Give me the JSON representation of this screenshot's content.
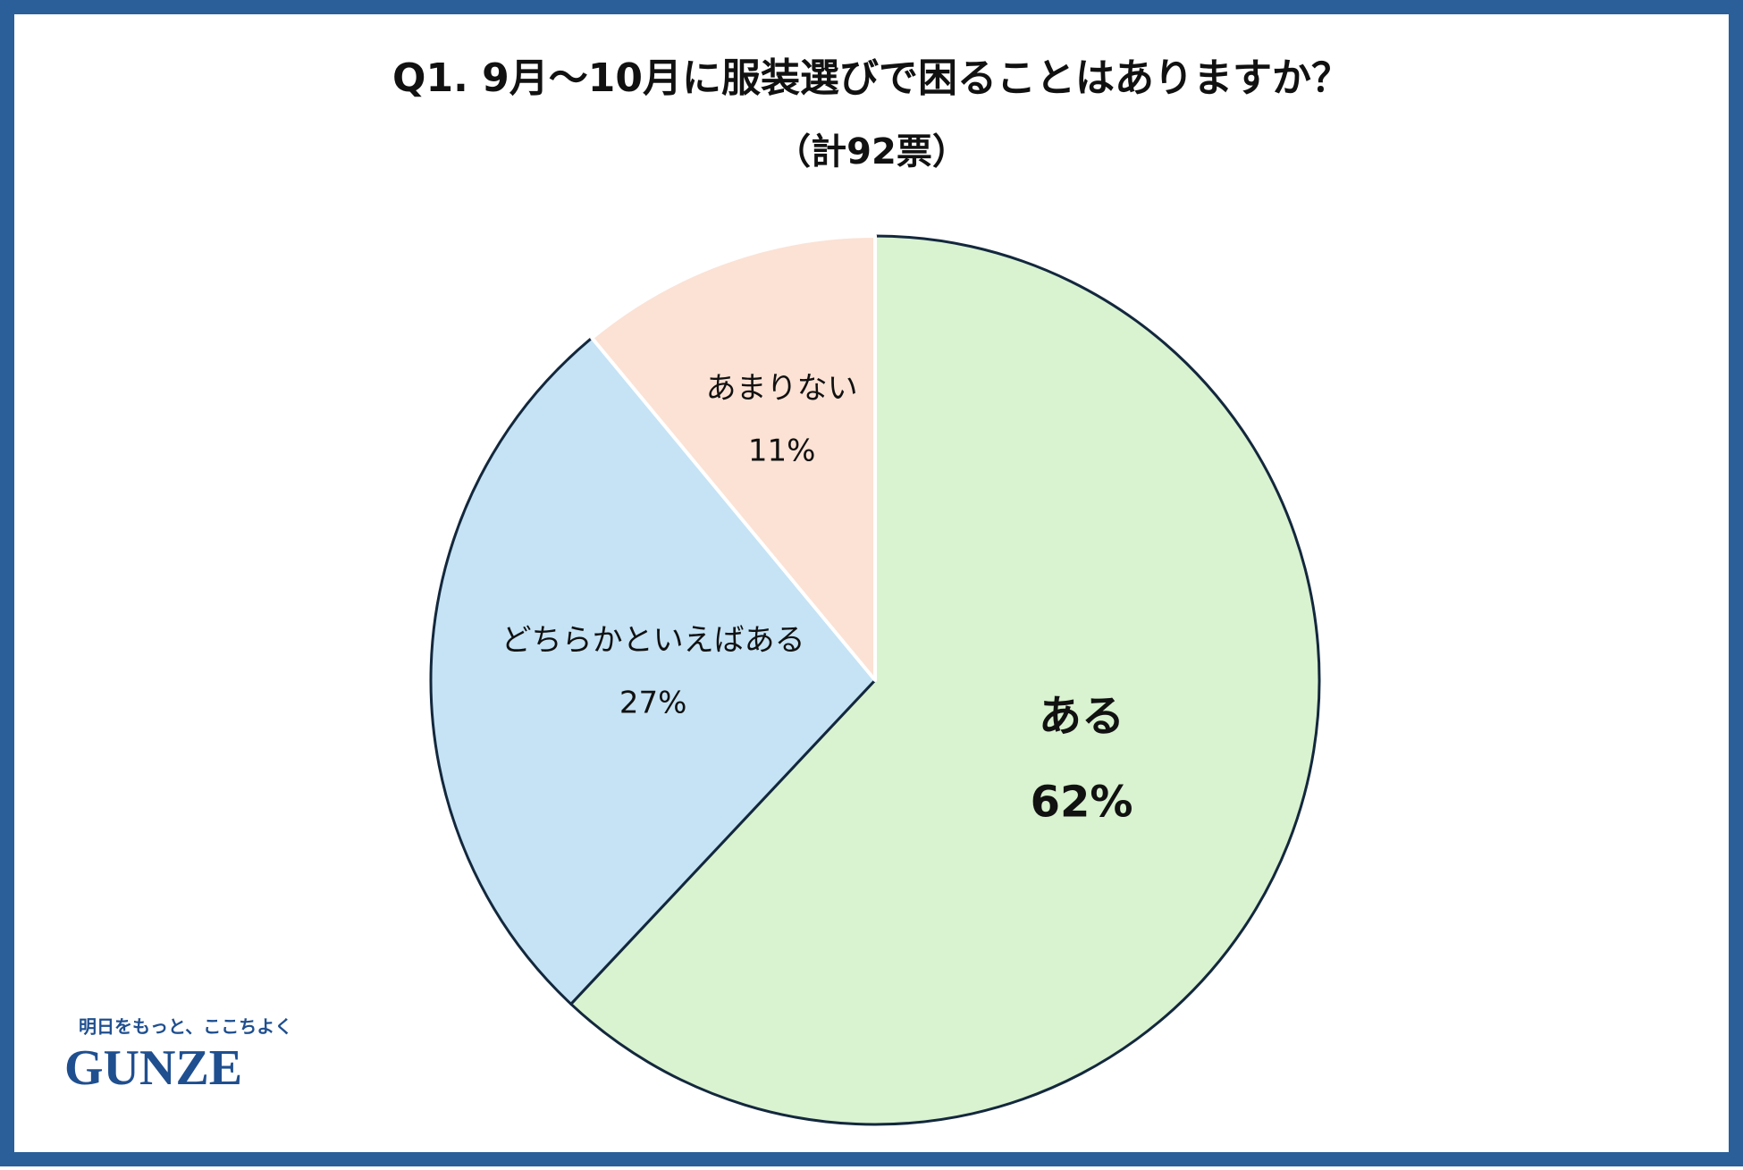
{
  "chart_data": {
    "type": "pie",
    "title": "Q1. 9月～10月に服装選びで困ることはありますか？",
    "subtitle": "（計92票）",
    "categories": [
      "ある",
      "どちらかといえばある",
      "あまりない"
    ],
    "values": [
      62,
      27,
      11
    ],
    "value_labels": [
      "62%",
      "27%",
      "11%"
    ],
    "colors": [
      "#d9f2d0",
      "#c5e3f5",
      "#fbe2d5"
    ]
  },
  "logo": {
    "tagline": "明日をもっと、ここちよく",
    "brand": "GUNZE"
  }
}
